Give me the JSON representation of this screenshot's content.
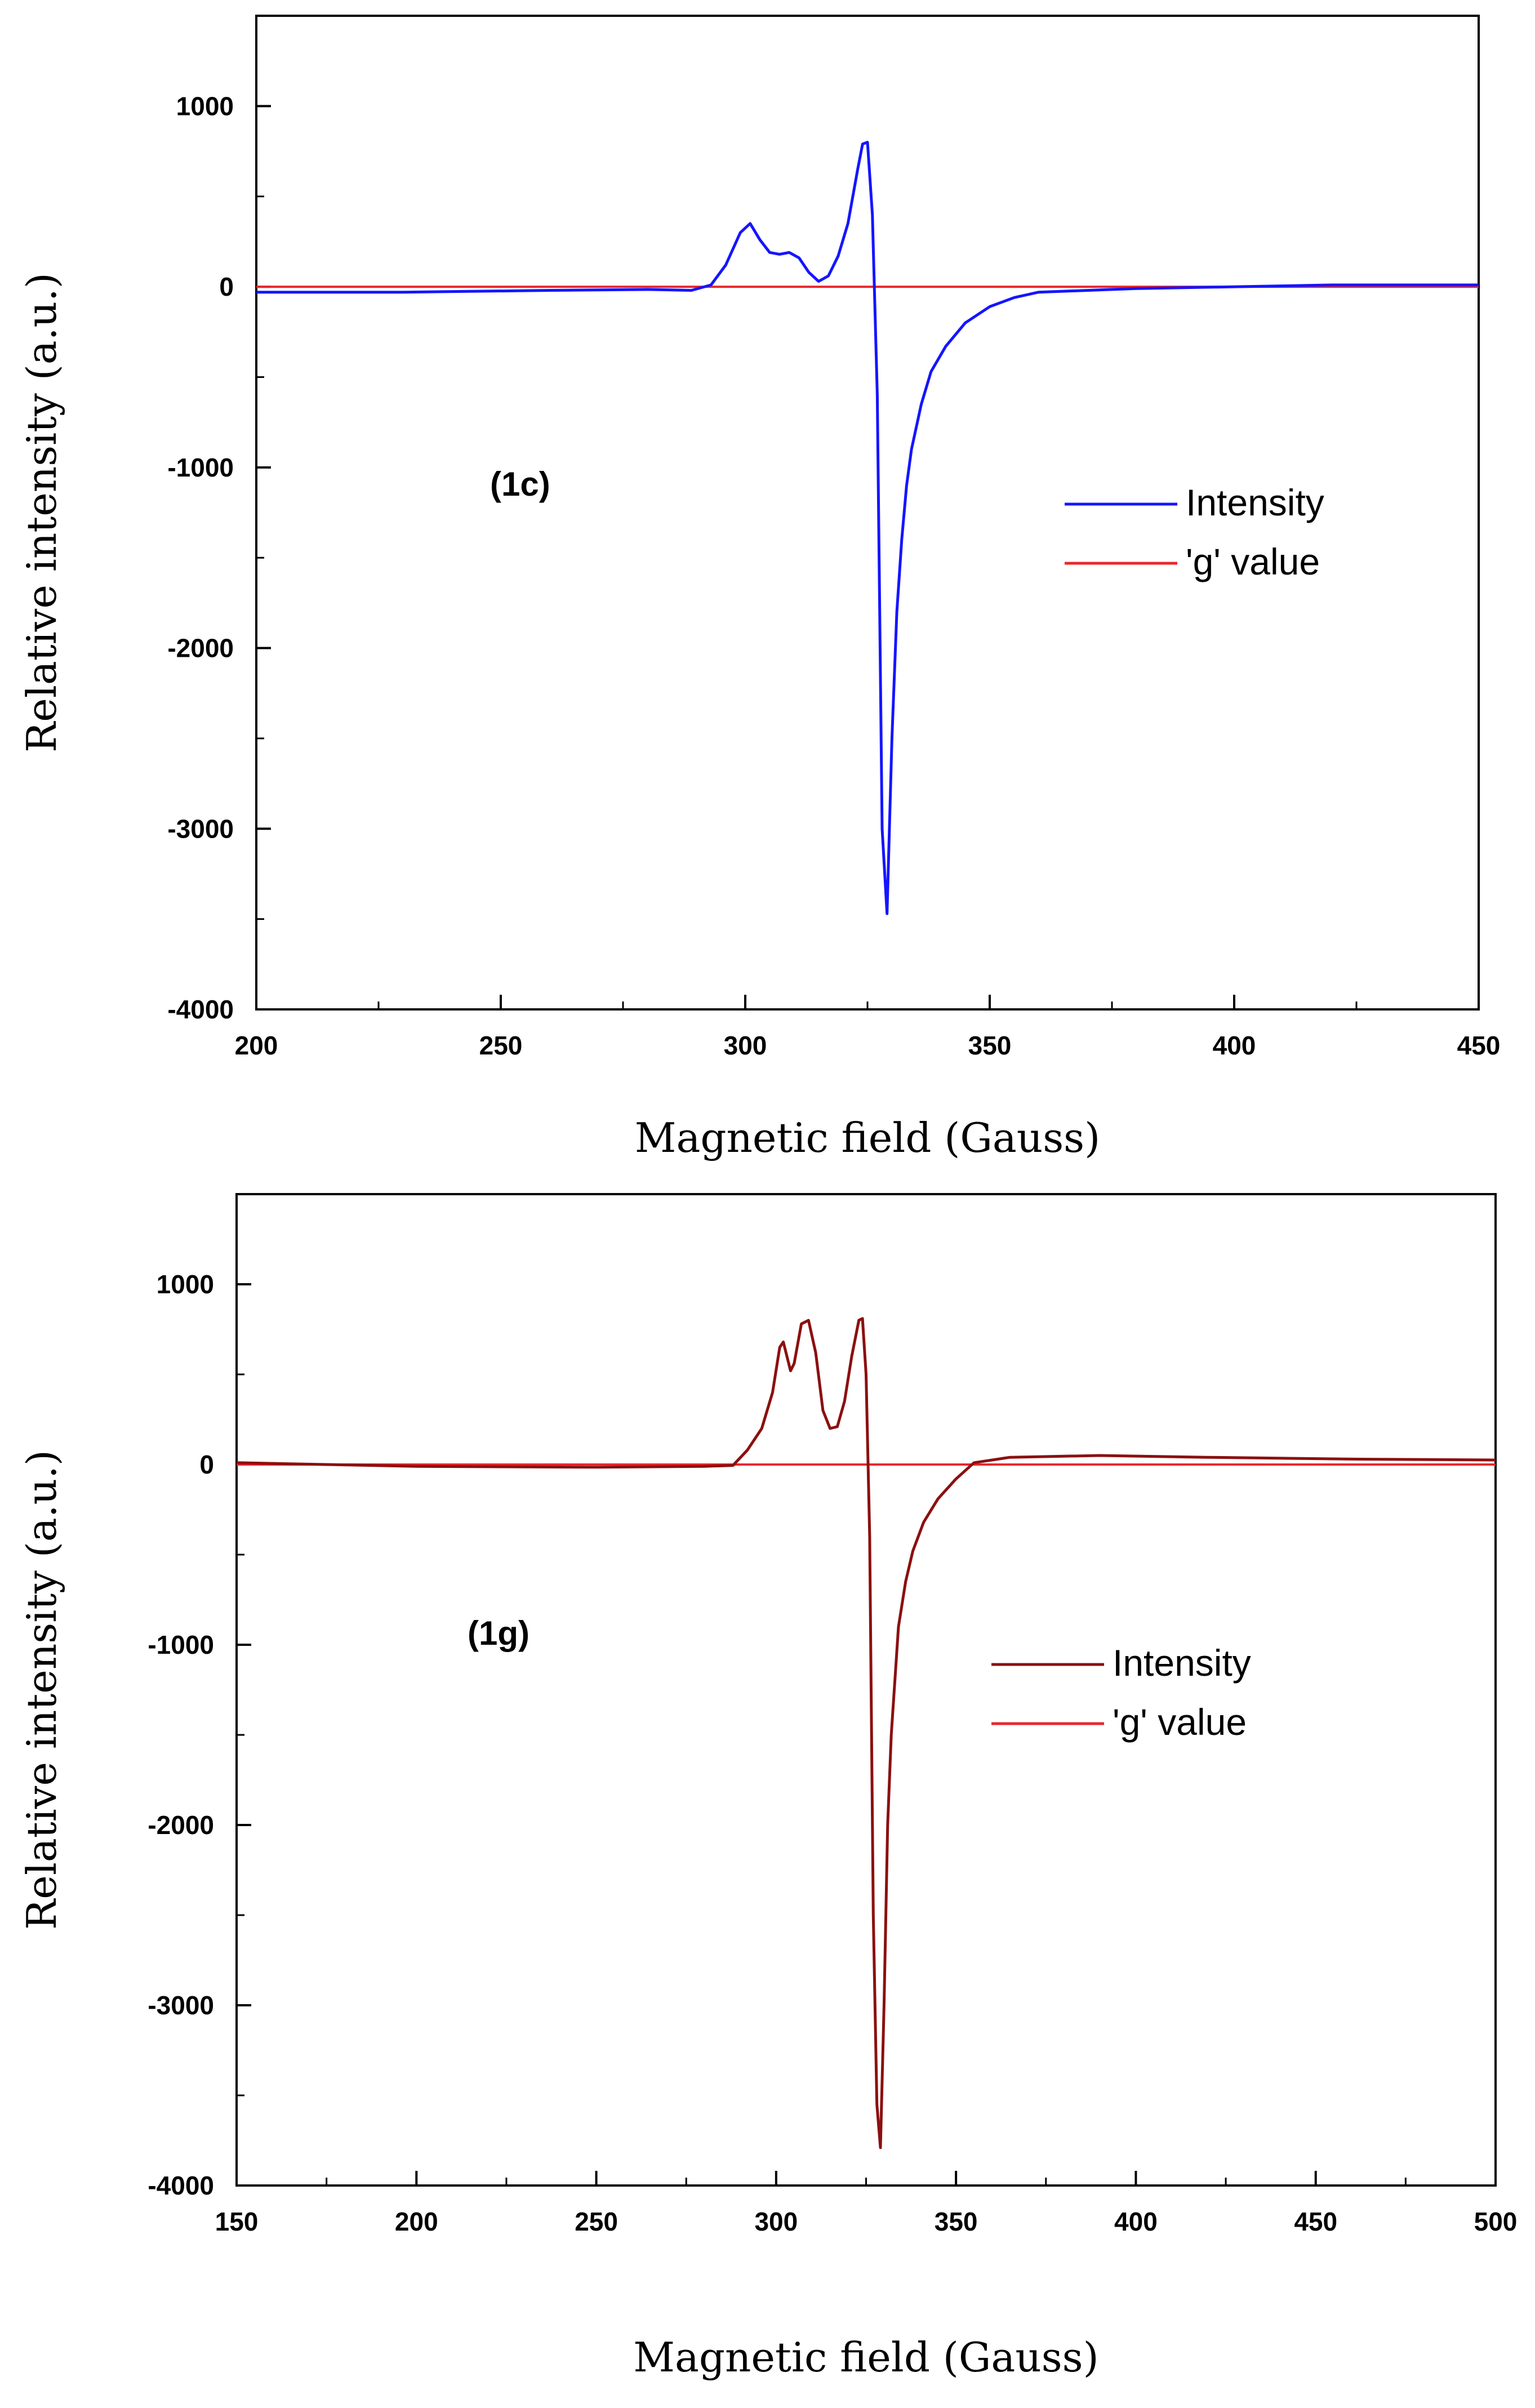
{
  "chart_data": [
    {
      "type": "line",
      "panel_label": "(1c)",
      "xlabel": "Magnetic field (Gauss)",
      "ylabel": "Relative intensity (a.u.)",
      "xlim": [
        200,
        450
      ],
      "ylim": [
        -4000,
        1500
      ],
      "xticks": [
        200,
        250,
        300,
        350,
        400,
        450
      ],
      "yticks": [
        -4000,
        -3000,
        -2000,
        -1000,
        0,
        1000
      ],
      "legend_position": "right-middle",
      "series": [
        {
          "name": "Intensity",
          "color": "#1515ff",
          "x": [
            200,
            230,
            260,
            280,
            289,
            293,
            296,
            299,
            301,
            303,
            305,
            307,
            309,
            311,
            313,
            315,
            317,
            319,
            321,
            323,
            324,
            325,
            326,
            327,
            328,
            329,
            330,
            331,
            332,
            333,
            334,
            336,
            338,
            341,
            345,
            350,
            355,
            360,
            380,
            400,
            420,
            450
          ],
          "y": [
            -30,
            -30,
            -20,
            -15,
            -20,
            10,
            120,
            300,
            350,
            260,
            190,
            180,
            190,
            160,
            80,
            30,
            60,
            170,
            350,
            650,
            790,
            800,
            400,
            -600,
            -3000,
            -3470,
            -2500,
            -1800,
            -1400,
            -1100,
            -900,
            -650,
            -470,
            -330,
            -200,
            -110,
            -60,
            -30,
            -10,
            0,
            10,
            10
          ]
        },
        {
          "name": "'g' value",
          "color": "#e8282d",
          "x": [
            200,
            450
          ],
          "y": [
            0,
            0
          ]
        }
      ]
    },
    {
      "type": "line",
      "panel_label": "(1g)",
      "xlabel": "Magnetic field (Gauss)",
      "ylabel": "Relative intensity (a.u.)",
      "xlim": [
        150,
        500
      ],
      "ylim": [
        -4000,
        1500
      ],
      "xticks": [
        150,
        200,
        250,
        300,
        350,
        400,
        450,
        500
      ],
      "yticks": [
        -4000,
        -3000,
        -2000,
        -1000,
        0,
        1000
      ],
      "legend_position": "right-middle",
      "series": [
        {
          "name": "Intensity",
          "color": "#8b1010",
          "x": [
            150,
            200,
            250,
            280,
            288,
            292,
            296,
            299,
            301,
            302,
            304,
            305,
            307,
            309,
            311,
            313,
            315,
            317,
            319,
            321,
            323,
            324,
            325,
            326,
            327,
            328,
            329,
            330,
            331,
            332,
            333,
            334,
            336,
            338,
            341,
            345,
            350,
            355,
            365,
            390,
            420,
            460,
            500
          ],
          "y": [
            10,
            -10,
            -15,
            -10,
            -5,
            80,
            200,
            400,
            650,
            680,
            520,
            560,
            780,
            800,
            620,
            300,
            200,
            210,
            350,
            600,
            800,
            810,
            500,
            -400,
            -2500,
            -3550,
            -3790,
            -3000,
            -2000,
            -1500,
            -1200,
            -900,
            -650,
            -480,
            -320,
            -190,
            -80,
            10,
            40,
            50,
            40,
            30,
            25
          ]
        },
        {
          "name": "'g' value",
          "color": "#e8282d",
          "x": [
            150,
            500
          ],
          "y": [
            0,
            0
          ]
        }
      ]
    }
  ]
}
